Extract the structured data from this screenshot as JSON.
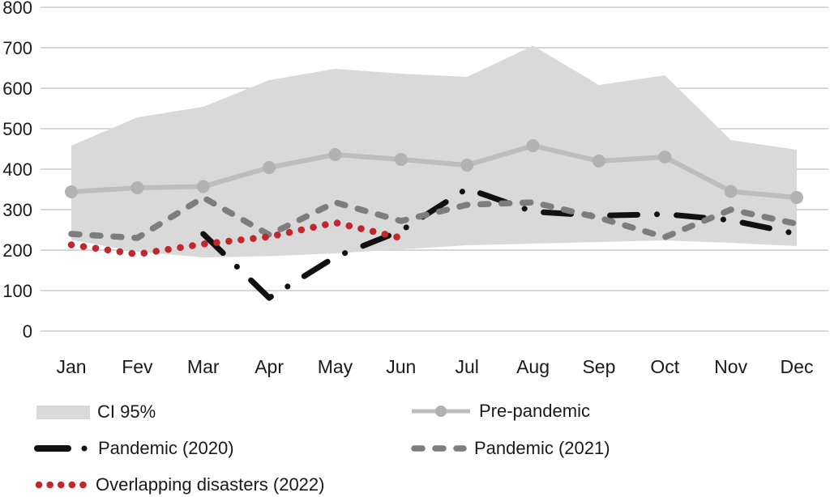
{
  "chart_data": {
    "type": "line",
    "title": "",
    "categories": [
      "Jan",
      "Fev",
      "Mar",
      "Apr",
      "May",
      "Jun",
      "Jul",
      "Aug",
      "Sep",
      "Oct",
      "Nov",
      "Dec"
    ],
    "xlabel": "",
    "ylabel": "",
    "y_axis": {
      "min": 0,
      "max": 800,
      "tick_step": 100,
      "ticks": [
        800,
        700,
        600,
        500,
        400,
        300,
        200,
        100,
        0
      ]
    },
    "grid": true,
    "legend_position": "bottom",
    "series": [
      {
        "name": "CI 95%",
        "type": "band",
        "color": "#d9d9d9",
        "upper": [
          458,
          528,
          554,
          620,
          648,
          636,
          628,
          705,
          608,
          632,
          472,
          448
        ],
        "lower": [
          225,
          196,
          182,
          185,
          192,
          202,
          212,
          216,
          220,
          224,
          218,
          210
        ]
      },
      {
        "name": "Pre-pandemic",
        "type": "line",
        "style": "solid-with-markers",
        "color": "#bdbdbd",
        "marker_color": "#b2b2b2",
        "values": [
          344,
          354,
          357,
          404,
          436,
          424,
          410,
          458,
          420,
          430,
          345,
          330
        ]
      },
      {
        "name": "Pandemic (2020)",
        "type": "line",
        "style": "dash-dot",
        "color": "#111111",
        "values": [
          null,
          null,
          240,
          82,
          183,
          248,
          352,
          295,
          285,
          289,
          274,
          240
        ]
      },
      {
        "name": "Pandemic (2021)",
        "type": "line",
        "style": "dashed",
        "color": "#7d7d7d",
        "values": [
          240,
          230,
          330,
          238,
          318,
          272,
          312,
          318,
          280,
          232,
          300,
          265
        ]
      },
      {
        "name": "Overlapping disasters (2022)",
        "type": "line",
        "style": "dotted",
        "color": "#c1272d",
        "values": [
          213,
          190,
          215,
          233,
          268,
          230,
          null,
          null,
          null,
          null,
          null,
          null
        ]
      }
    ]
  }
}
